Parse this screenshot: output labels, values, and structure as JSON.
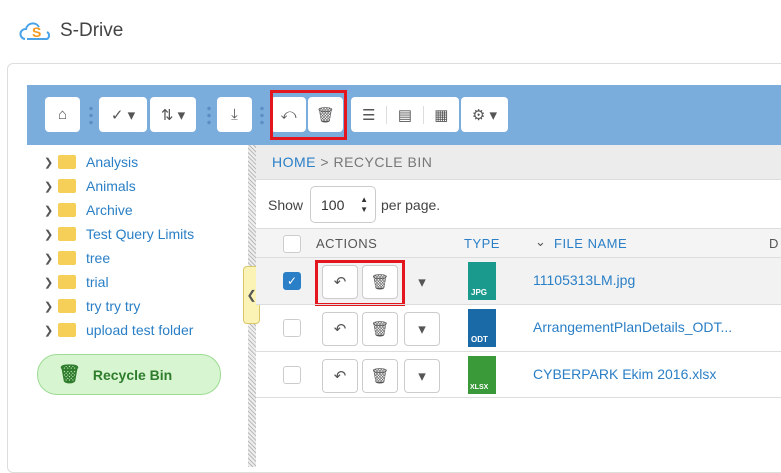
{
  "app": {
    "title": "S-Drive",
    "logo_text": "S"
  },
  "toolbar": {
    "buttons": [
      "home-icon",
      "check-dropdown-icon",
      "sort-dropdown-icon",
      "download-icon",
      "restore-all-icon",
      "delete-icon",
      "list-view-icon",
      "detail-view-icon",
      "grid-view-icon",
      "settings-dropdown-icon"
    ]
  },
  "sidebar": {
    "folders": [
      "Analysis",
      "Animals",
      "Archive",
      "Test Query Limits",
      "tree",
      "trial",
      "try try try",
      "upload test folder"
    ],
    "recycle_bin": "Recycle Bin"
  },
  "breadcrumb": {
    "home": "HOME",
    "sep": " > ",
    "current": "RECYCLE BIN"
  },
  "paging": {
    "show": "Show",
    "value": "100",
    "per_page": "per page."
  },
  "table": {
    "headers": {
      "actions": "ACTIONS",
      "type": "TYPE",
      "file_name": "FILE NAME",
      "next": "D"
    },
    "rows": [
      {
        "type": "JPG",
        "name": "11105313LM.jpg",
        "checked": true,
        "color": "#1a9a8c"
      },
      {
        "type": "ODT",
        "name": "ArrangementPlanDetails_ODT...",
        "checked": false,
        "color": "#1a6aa8"
      },
      {
        "type": "XLSX",
        "name": "CYBERPARK Ekim 2016.xlsx",
        "checked": false,
        "color": "#3a9a3a"
      }
    ]
  },
  "colors": {
    "toolbar": "#7aaddc",
    "highlight": "#e3161d",
    "link": "#2a7fc6"
  }
}
